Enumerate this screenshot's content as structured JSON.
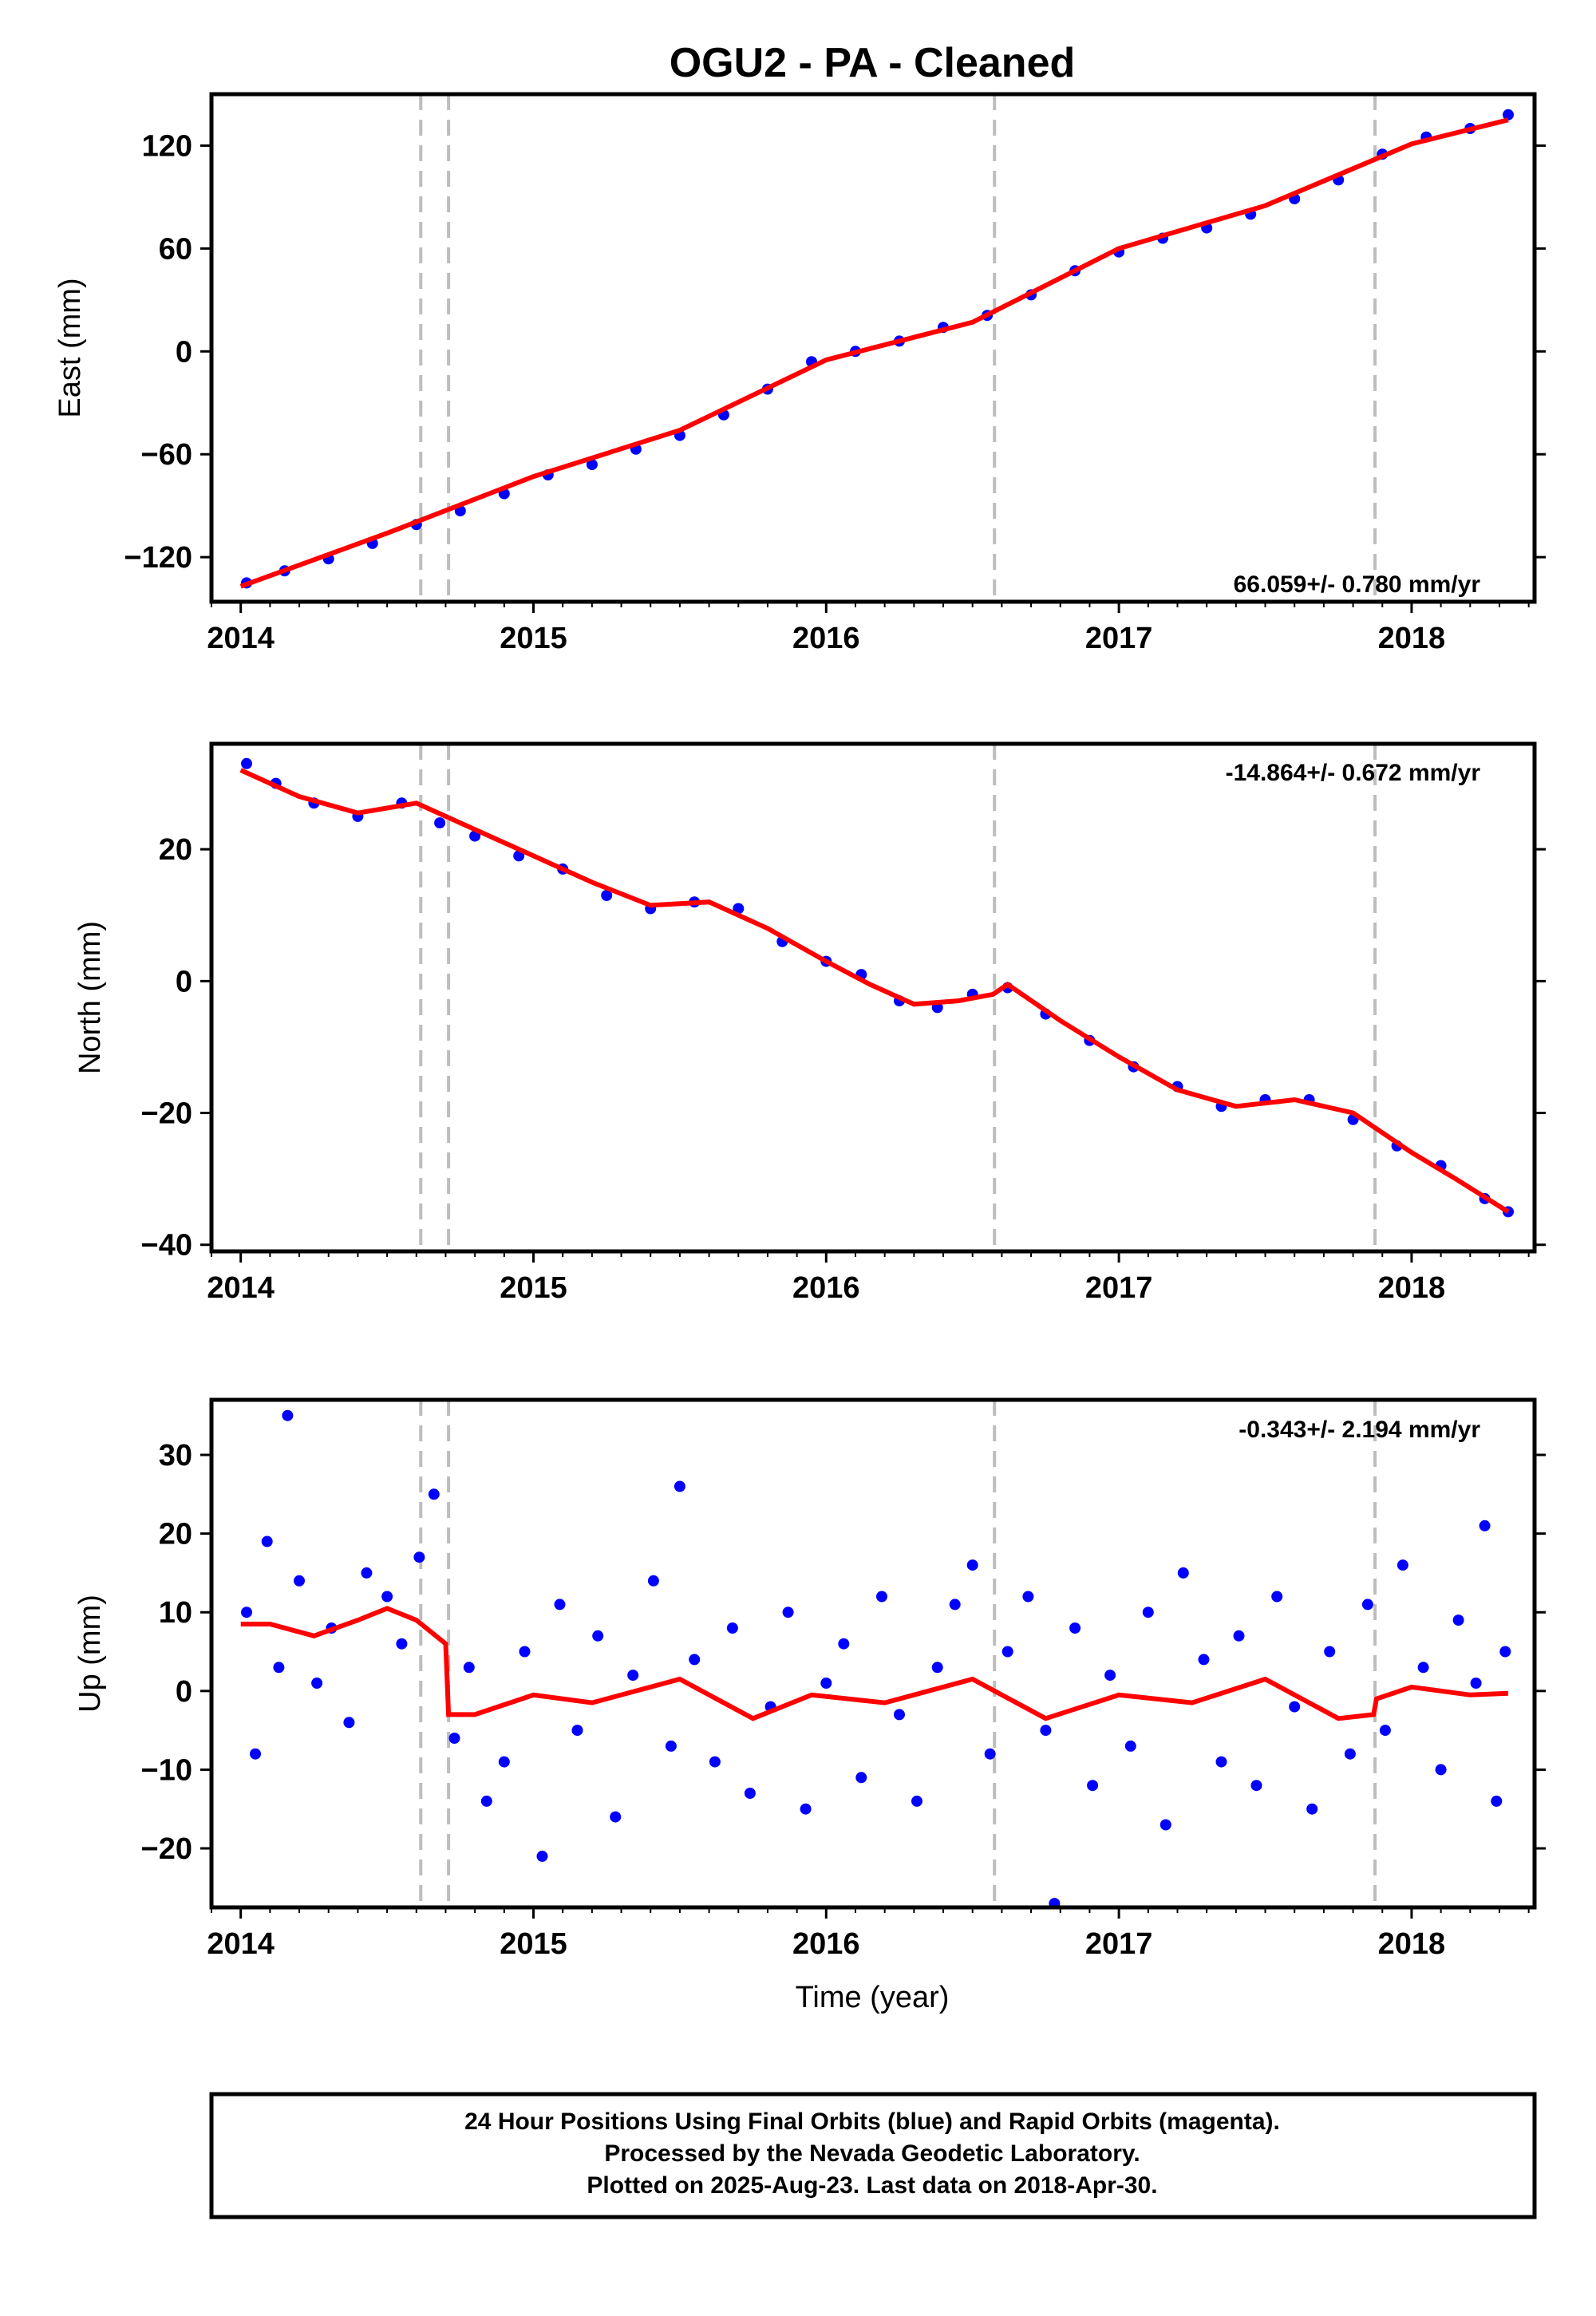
{
  "title": "OGU2  - PA - Cleaned",
  "xlabel": "Time (year)",
  "x_ticks": [
    2014,
    2015,
    2016,
    2017,
    2018
  ],
  "x_range": [
    2013.9,
    2018.42
  ],
  "event_lines": [
    2014.615,
    2014.71,
    2016.575,
    2017.875
  ],
  "colors": {
    "data": "#0000ff",
    "model": "#ff0000",
    "event_line": "#bdbdbd",
    "axis": "#000000"
  },
  "chart_data": [
    {
      "type": "scatter",
      "component": "east",
      "ylabel": "East (mm)",
      "ylim": [
        -146,
        150
      ],
      "y_ticks": [
        -120,
        -60,
        0,
        60,
        120
      ],
      "rate_label": "66.059+/- 0.780 mm/yr",
      "rate_position": "bottom-right",
      "model": {
        "x": [
          2014.0,
          2014.5,
          2015.0,
          2015.5,
          2016.0,
          2016.5,
          2017.0,
          2017.5,
          2018.0,
          2018.33
        ],
        "y": [
          -137,
          -106,
          -73,
          -46,
          -5,
          17,
          60,
          85,
          121,
          135
        ]
      },
      "points": {
        "x": [
          2014.02,
          2014.15,
          2014.3,
          2014.45,
          2014.6,
          2014.75,
          2014.9,
          2015.05,
          2015.2,
          2015.35,
          2015.5,
          2015.65,
          2015.8,
          2015.95,
          2016.1,
          2016.25,
          2016.4,
          2016.55,
          2016.7,
          2016.85,
          2017.0,
          2017.15,
          2017.3,
          2017.45,
          2017.6,
          2017.75,
          2017.9,
          2018.05,
          2018.2,
          2018.33
        ],
        "y": [
          -135,
          -128,
          -121,
          -112,
          -101,
          -93,
          -83,
          -72,
          -66,
          -57,
          -49,
          -37,
          -22,
          -6,
          0,
          6,
          14,
          21,
          33,
          47,
          58,
          66,
          72,
          80,
          89,
          100,
          115,
          125,
          130,
          138
        ]
      }
    },
    {
      "type": "scatter",
      "component": "north",
      "ylabel": "North (mm)",
      "ylim": [
        -41,
        36
      ],
      "y_ticks": [
        -40,
        -20,
        0,
        20
      ],
      "rate_label": "-14.864+/- 0.672 mm/yr",
      "rate_position": "top-right",
      "model": {
        "x": [
          2014.0,
          2014.2,
          2014.4,
          2014.6,
          2014.8,
          2015.0,
          2015.2,
          2015.4,
          2015.6,
          2015.8,
          2016.0,
          2016.15,
          2016.3,
          2016.45,
          2016.57,
          2016.62,
          2016.8,
          2017.0,
          2017.2,
          2017.4,
          2017.6,
          2017.8,
          2018.0,
          2018.15,
          2018.33
        ],
        "y": [
          32,
          28,
          25.5,
          27,
          23,
          19,
          15,
          11.5,
          12,
          8,
          3,
          -0.5,
          -3.5,
          -3,
          -2,
          -0.5,
          -6,
          -11.5,
          -16.5,
          -19,
          -18,
          -20,
          -26,
          -30,
          -35
        ]
      },
      "points": {
        "x": [
          2014.02,
          2014.12,
          2014.25,
          2014.4,
          2014.55,
          2014.68,
          2014.8,
          2014.95,
          2015.1,
          2015.25,
          2015.4,
          2015.55,
          2015.7,
          2015.85,
          2016.0,
          2016.12,
          2016.25,
          2016.38,
          2016.5,
          2016.62,
          2016.75,
          2016.9,
          2017.05,
          2017.2,
          2017.35,
          2017.5,
          2017.65,
          2017.8,
          2017.95,
          2018.1,
          2018.25,
          2018.33
        ],
        "y": [
          33,
          30,
          27,
          25,
          27,
          24,
          22,
          19,
          17,
          13,
          11,
          12,
          11,
          6,
          3,
          1,
          -3,
          -4,
          -2,
          -1,
          -5,
          -9,
          -13,
          -16,
          -19,
          -18,
          -18,
          -21,
          -25,
          -28,
          -33,
          -35
        ]
      }
    },
    {
      "type": "scatter",
      "component": "up",
      "ylabel": "Up (mm)",
      "ylim": [
        -27.5,
        37
      ],
      "y_ticks": [
        -20,
        -10,
        0,
        10,
        20,
        30
      ],
      "rate_label": "-0.343+/- 2.194 mm/yr",
      "rate_position": "top-right",
      "model": {
        "x": [
          2014.0,
          2014.1,
          2014.25,
          2014.4,
          2014.5,
          2014.6,
          2014.7,
          2014.71,
          2014.8,
          2015.0,
          2015.2,
          2015.5,
          2015.75,
          2015.95,
          2016.2,
          2016.5,
          2016.75,
          2017.0,
          2017.25,
          2017.5,
          2017.75,
          2017.87,
          2017.88,
          2018.0,
          2018.2,
          2018.33
        ],
        "y": [
          8.5,
          8.5,
          7,
          9,
          10.5,
          9,
          6,
          -3,
          -3,
          -0.5,
          -1.5,
          1.5,
          -3.5,
          -0.5,
          -1.5,
          1.5,
          -3.5,
          -0.5,
          -1.5,
          1.5,
          -3.5,
          -3,
          -1,
          0.5,
          -0.5,
          -0.3
        ]
      },
      "points": {
        "x": [
          2014.02,
          2014.05,
          2014.09,
          2014.13,
          2014.16,
          2014.2,
          2014.26,
          2014.31,
          2014.37,
          2014.43,
          2014.5,
          2014.55,
          2014.61,
          2014.66,
          2014.73,
          2014.78,
          2014.84,
          2014.9,
          2014.97,
          2015.03,
          2015.09,
          2015.15,
          2015.22,
          2015.28,
          2015.34,
          2015.41,
          2015.47,
          2015.5,
          2015.55,
          2015.62,
          2015.68,
          2015.74,
          2015.81,
          2015.87,
          2015.93,
          2016.0,
          2016.06,
          2016.12,
          2016.19,
          2016.25,
          2016.31,
          2016.38,
          2016.44,
          2016.5,
          2016.56,
          2016.62,
          2016.69,
          2016.75,
          2016.78,
          2016.85,
          2016.91,
          2016.97,
          2017.04,
          2017.1,
          2017.16,
          2017.22,
          2017.29,
          2017.35,
          2017.41,
          2017.47,
          2017.54,
          2017.6,
          2017.66,
          2017.72,
          2017.79,
          2017.85,
          2017.91,
          2017.97,
          2018.04,
          2018.1,
          2018.16,
          2018.22,
          2018.25,
          2018.29,
          2018.32
        ],
        "y": [
          10,
          -8,
          19,
          3,
          35,
          14,
          1,
          8,
          -4,
          15,
          12,
          6,
          17,
          25,
          -6,
          3,
          -14,
          -9,
          5,
          -21,
          11,
          -5,
          7,
          -16,
          2,
          14,
          -7,
          26,
          4,
          -9,
          8,
          -13,
          -2,
          10,
          -15,
          1,
          6,
          -11,
          12,
          -3,
          -14,
          3,
          11,
          16,
          -8,
          5,
          12,
          -5,
          -27,
          8,
          -12,
          2,
          -7,
          10,
          -17,
          15,
          4,
          -9,
          7,
          -12,
          12,
          -2,
          -15,
          5,
          -8,
          11,
          -5,
          16,
          3,
          -10,
          9,
          1,
          21,
          -14,
          5
        ]
      }
    }
  ],
  "footer": {
    "line1": "24 Hour Positions Using Final Orbits (blue) and Rapid Orbits (magenta).",
    "line2": "Processed by the Nevada Geodetic Laboratory.",
    "line3": "Plotted on 2025-Aug-23. Last data on 2018-Apr-30."
  }
}
